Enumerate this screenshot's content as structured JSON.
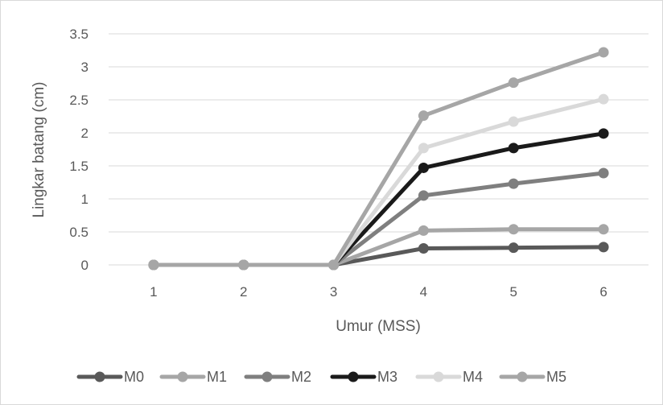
{
  "chart_data": {
    "type": "line",
    "xlabel": "Umur (MSS)",
    "ylabel": "Lingkar batang (cm)",
    "categories": [
      "1",
      "2",
      "3",
      "4",
      "5",
      "6"
    ],
    "ylim": [
      0,
      3.5
    ],
    "yticks": [
      "0",
      "0.5",
      "1",
      "1.5",
      "2",
      "2.5",
      "3",
      "3.5"
    ],
    "grid": true,
    "legend_position": "bottom",
    "series": [
      {
        "name": "M0",
        "color": "#595959",
        "values": [
          0,
          0,
          0,
          0.25,
          0.26,
          0.27
        ]
      },
      {
        "name": "M1",
        "color": "#a6a6a6",
        "values": [
          0,
          0,
          0,
          0.52,
          0.54,
          0.54
        ]
      },
      {
        "name": "M2",
        "color": "#7f7f7f",
        "values": [
          0,
          0,
          0,
          1.05,
          1.23,
          1.39
        ]
      },
      {
        "name": "M3",
        "color": "#1a1a1a",
        "values": [
          0,
          0,
          0,
          1.47,
          1.77,
          1.99
        ]
      },
      {
        "name": "M4",
        "color": "#d9d9d9",
        "values": [
          0,
          0,
          0,
          1.77,
          2.17,
          2.51
        ]
      },
      {
        "name": "M5",
        "color": "#a6a6a6",
        "values": [
          0,
          0,
          0,
          2.26,
          2.76,
          3.22
        ]
      }
    ]
  }
}
